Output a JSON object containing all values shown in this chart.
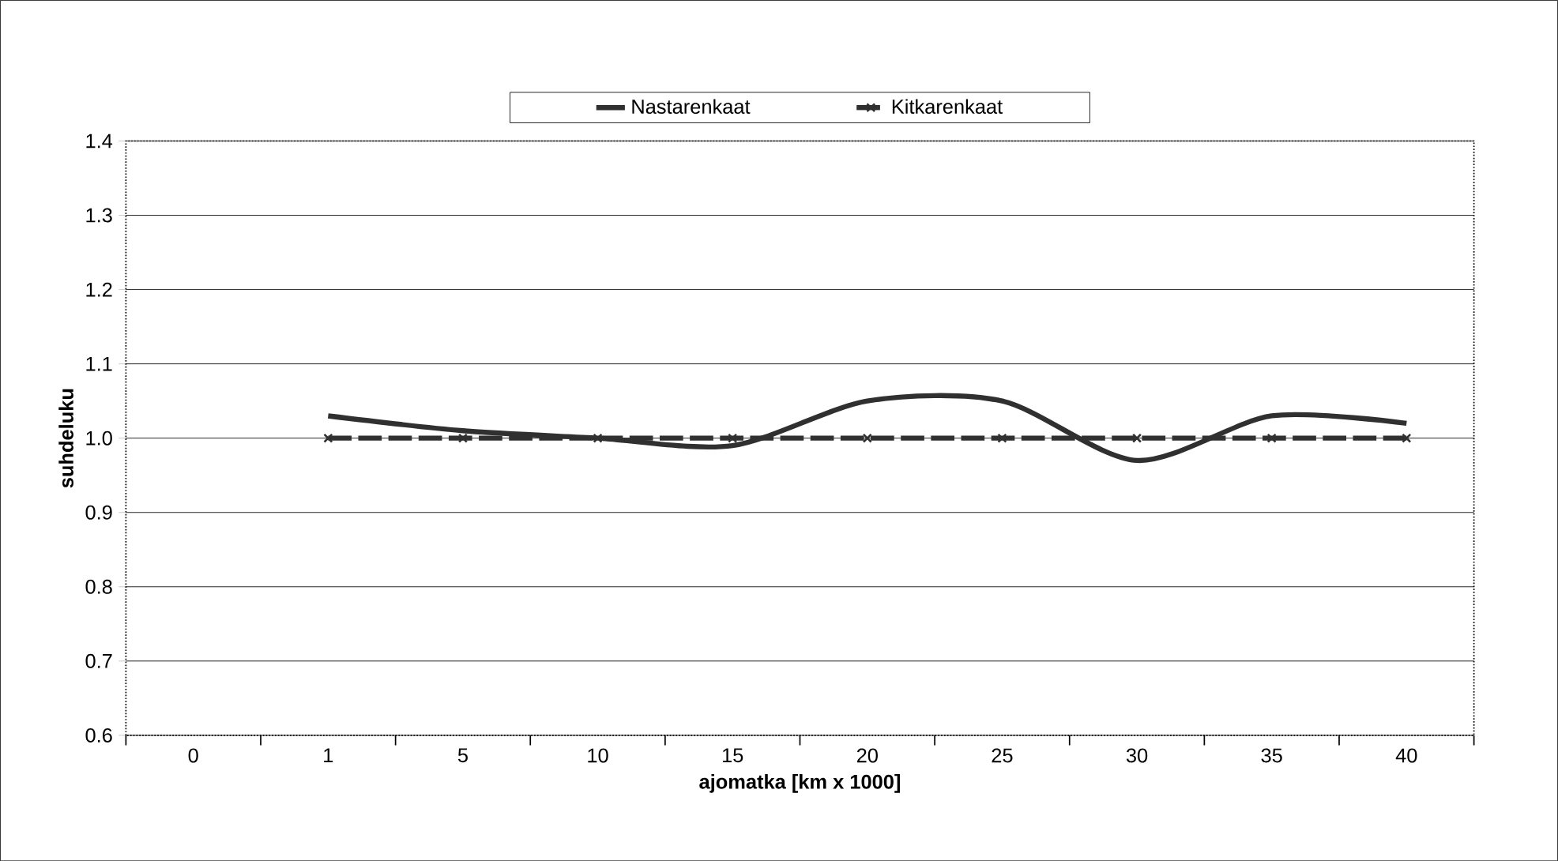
{
  "chart_data": {
    "type": "line",
    "xlabel": "ajomatka [km x 1000]",
    "ylabel": "suhdeluku",
    "categories": [
      "0",
      "1",
      "5",
      "10",
      "15",
      "20",
      "25",
      "30",
      "35",
      "40"
    ],
    "series": [
      {
        "name": "Nastarenkaat",
        "color": "#303030",
        "values": [
          null,
          1.03,
          1.01,
          1.0,
          0.99,
          1.05,
          1.05,
          0.97,
          1.03,
          1.02
        ],
        "marker": "none",
        "line_style": "solid"
      },
      {
        "name": "Kitkarenkaat",
        "color": "#303030",
        "values": [
          null,
          1.0,
          1.0,
          1.0,
          1.0,
          1.0,
          1.0,
          1.0,
          1.0,
          1.0
        ],
        "marker": "cross",
        "line_style": "dashed"
      }
    ],
    "ylim": [
      0.6,
      1.4
    ],
    "yticks": [
      {
        "value": 0.6,
        "label": "0.6"
      },
      {
        "value": 0.7,
        "label": "0.7"
      },
      {
        "value": 0.8,
        "label": "0.8"
      },
      {
        "value": 0.9,
        "label": "0.9"
      },
      {
        "value": 1.0,
        "label": "1.0"
      },
      {
        "value": 1.1,
        "label": "1.1"
      },
      {
        "value": 1.2,
        "label": "1.2"
      },
      {
        "value": 1.3,
        "label": "1.3"
      },
      {
        "value": 1.4,
        "label": "1.4"
      }
    ],
    "grid": "y",
    "legend": "top"
  }
}
